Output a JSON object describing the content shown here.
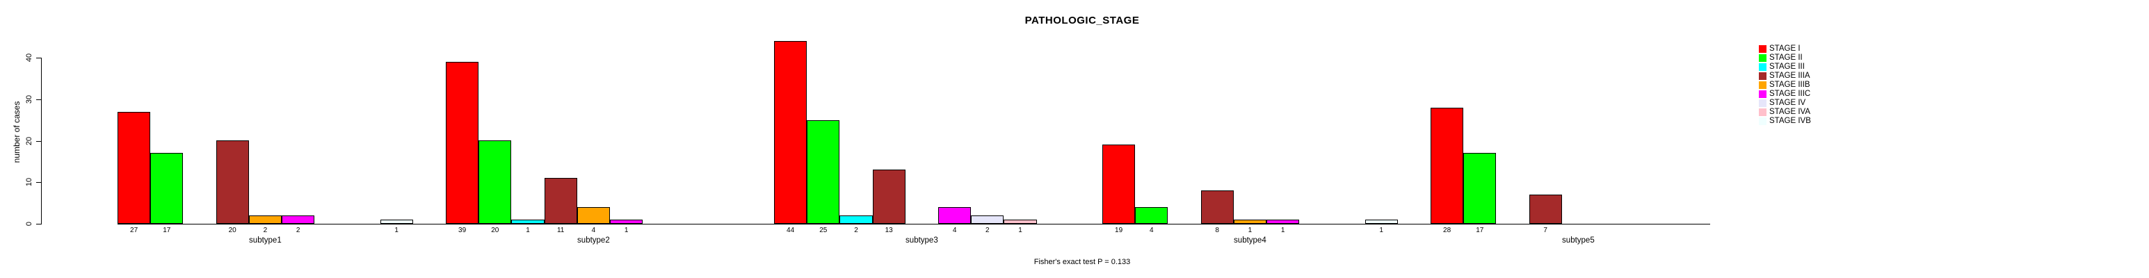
{
  "caption": "Fisher's exact test P = 0.133",
  "chart_data": {
    "type": "bar",
    "title": "PATHOLOGIC_STAGE",
    "xlabel": "",
    "ylabel": "number of cases",
    "ylim": [
      0,
      44
    ],
    "yticks": [
      0,
      10,
      20,
      30,
      40
    ],
    "grid": false,
    "legend_position": "right",
    "bar_value_labels": "shown under each non-zero bar",
    "categories": [
      "subtype1",
      "subtype2",
      "subtype3",
      "subtype4",
      "subtype5"
    ],
    "series": [
      {
        "name": "STAGE I",
        "color": "#FF0000",
        "values": [
          27,
          39,
          44,
          19,
          28
        ]
      },
      {
        "name": "STAGE II",
        "color": "#00FF00",
        "values": [
          17,
          20,
          25,
          4,
          17
        ]
      },
      {
        "name": "STAGE III",
        "color": "#00FFFF",
        "values": [
          0,
          1,
          2,
          0,
          0
        ]
      },
      {
        "name": "STAGE IIIA",
        "color": "#A52A2A",
        "values": [
          20,
          11,
          13,
          8,
          7
        ]
      },
      {
        "name": "STAGE IIIB",
        "color": "#FFA500",
        "values": [
          2,
          4,
          0,
          1,
          0
        ]
      },
      {
        "name": "STAGE IIIC",
        "color": "#FF00FF",
        "values": [
          2,
          1,
          4,
          1,
          0
        ]
      },
      {
        "name": "STAGE IV",
        "color": "#E6E6FA",
        "values": [
          0,
          0,
          2,
          0,
          0
        ]
      },
      {
        "name": "STAGE IVA",
        "color": "#FFC0CB",
        "values": [
          0,
          0,
          1,
          0,
          0
        ]
      },
      {
        "name": "STAGE IVB",
        "color": "#F0FFFF",
        "values": [
          1,
          0,
          0,
          1,
          0
        ]
      }
    ]
  }
}
